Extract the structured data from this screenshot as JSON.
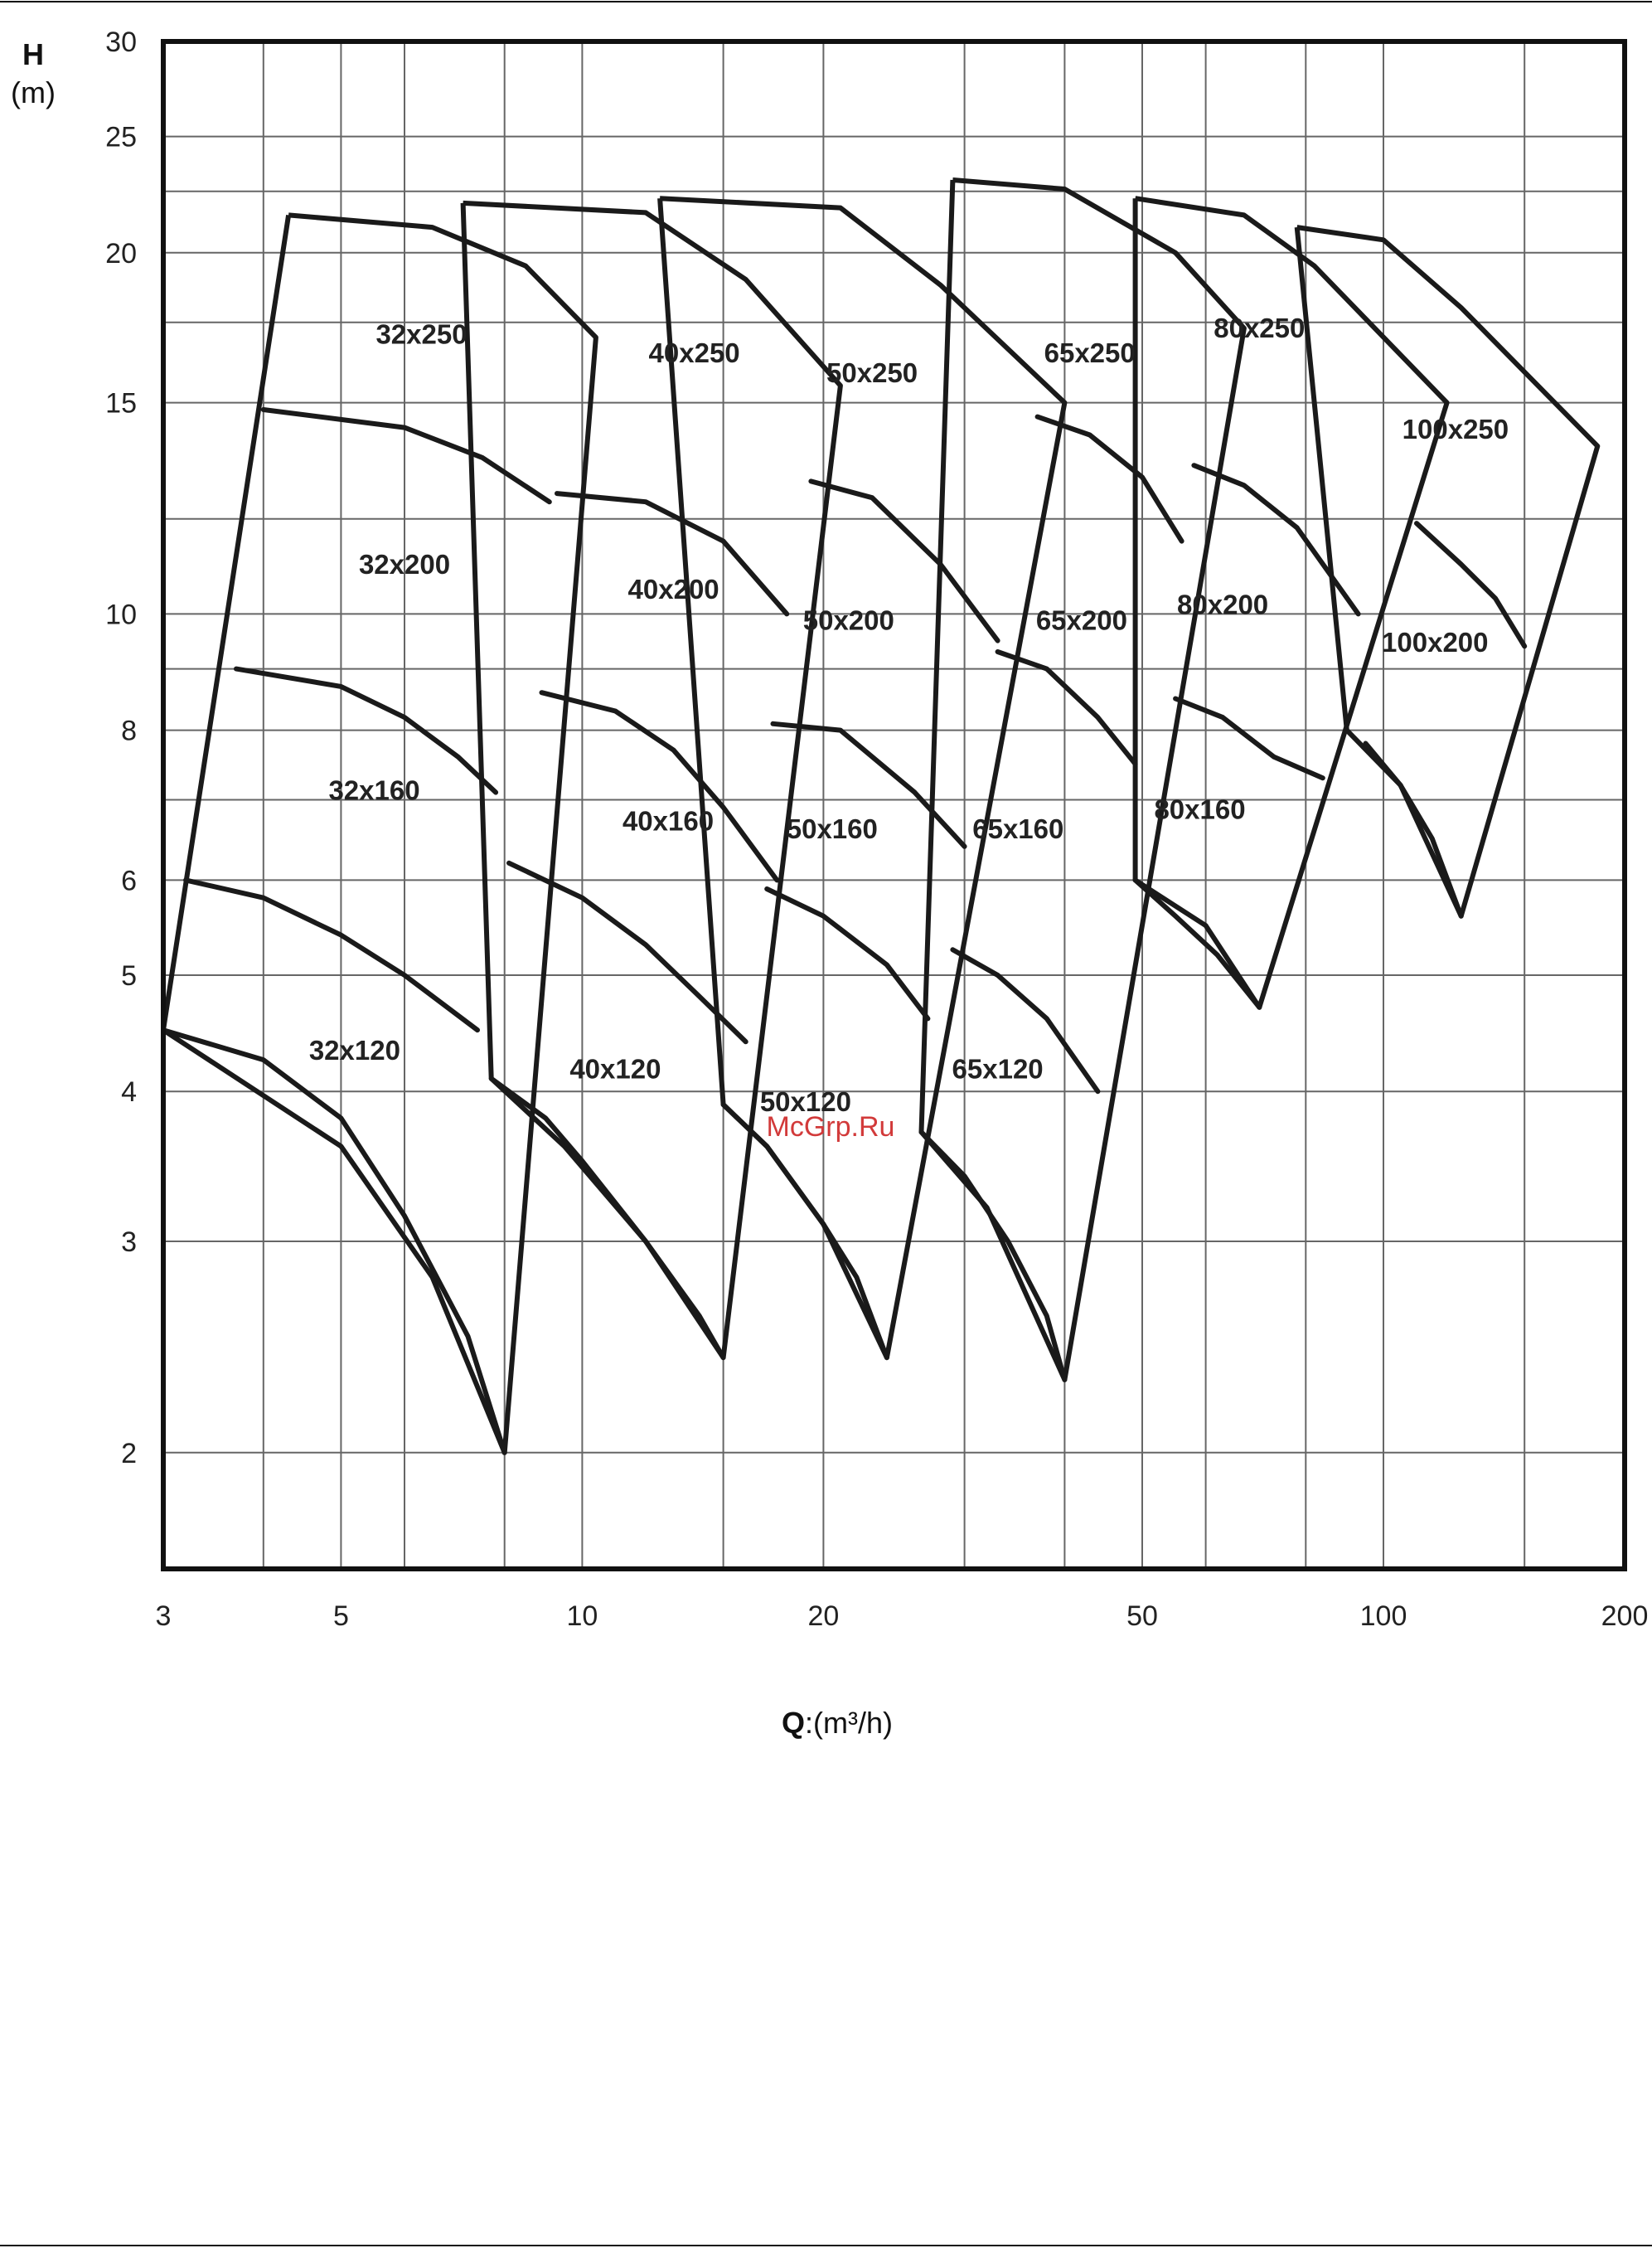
{
  "chart_data": {
    "type": "line",
    "title": "",
    "ylabel_symbol": "H",
    "ylabel_unit": "(m)",
    "xlabel_symbol": "Q",
    "xlabel_unit": ":(m³/h)",
    "x_scale": "log",
    "y_scale": "log",
    "xlim": [
      3,
      200
    ],
    "ylim": [
      1.6,
      30
    ],
    "x_ticks": [
      3,
      5,
      10,
      20,
      50,
      100,
      200
    ],
    "x_tick_labels": [
      "3",
      "5",
      "10",
      "20",
      "50",
      "100",
      "200"
    ],
    "y_ticks": [
      2,
      3,
      4,
      5,
      6,
      8,
      10,
      15,
      20,
      25,
      30
    ],
    "y_tick_labels": [
      "2",
      "3",
      "4",
      "5",
      "6",
      "8",
      "10",
      "15",
      "20",
      "25",
      "30"
    ],
    "x_gridlines": [
      3,
      4,
      5,
      6,
      8,
      10,
      15,
      20,
      30,
      40,
      50,
      60,
      80,
      100,
      150,
      200
    ],
    "y_gridlines": [
      2,
      3,
      4,
      5,
      6,
      7,
      8,
      9,
      10,
      12,
      15,
      17.5,
      20,
      22.5,
      25,
      30
    ],
    "grid": true,
    "line_color": "#1a1a1a",
    "watermark": "McGrp.Ru",
    "series": [
      {
        "name": "32x120",
        "label_at": [
          5.2,
          4.25
        ],
        "points": [
          [
            3,
            4.5
          ],
          [
            4,
            4.25
          ],
          [
            5,
            3.8
          ],
          [
            6,
            3.15
          ],
          [
            7.2,
            2.5
          ],
          [
            8,
            2.0
          ]
        ]
      },
      {
        "name": "32x160",
        "label_at": [
          5.5,
          7.0
        ],
        "points": [
          [
            3.2,
            6.0
          ],
          [
            4,
            5.8
          ],
          [
            5,
            5.4
          ],
          [
            6,
            5.0
          ],
          [
            7.4,
            4.5
          ]
        ]
      },
      {
        "name": "32x200",
        "label_at": [
          6.0,
          10.8
        ],
        "points": [
          [
            3.7,
            9.0
          ],
          [
            5,
            8.7
          ],
          [
            6,
            8.2
          ],
          [
            7,
            7.6
          ],
          [
            7.8,
            7.1
          ]
        ]
      },
      {
        "name": "32x250",
        "label_at": [
          6.3,
          16.8
        ],
        "points": [
          [
            4,
            14.8
          ],
          [
            6,
            14.3
          ],
          [
            7.5,
            13.5
          ],
          [
            9.1,
            12.4
          ]
        ]
      },
      {
        "name": "40x120",
        "label_at": [
          11.0,
          4.1
        ],
        "points": [
          [
            7.7,
            4.1
          ],
          [
            9,
            3.8
          ],
          [
            10,
            3.5
          ],
          [
            12,
            3.0
          ],
          [
            14,
            2.6
          ],
          [
            15,
            2.4
          ]
        ]
      },
      {
        "name": "40x160",
        "label_at": [
          12.8,
          6.6
        ],
        "points": [
          [
            8.1,
            6.2
          ],
          [
            10,
            5.8
          ],
          [
            12,
            5.3
          ],
          [
            14,
            4.8
          ],
          [
            16,
            4.4
          ]
        ]
      },
      {
        "name": "40x200",
        "label_at": [
          13.0,
          10.3
        ],
        "points": [
          [
            8.9,
            8.6
          ],
          [
            11,
            8.3
          ],
          [
            13,
            7.7
          ],
          [
            15,
            6.9
          ],
          [
            17.5,
            6.0
          ]
        ]
      },
      {
        "name": "40x250",
        "label_at": [
          13.8,
          16.2
        ],
        "points": [
          [
            9.3,
            12.6
          ],
          [
            12,
            12.4
          ],
          [
            15,
            11.5
          ],
          [
            18,
            10.0
          ]
        ]
      },
      {
        "name": "50x120",
        "label_at": [
          19.0,
          3.85
        ],
        "points": [
          [
            15,
            3.9
          ],
          [
            17,
            3.6
          ],
          [
            20,
            3.1
          ],
          [
            22,
            2.8
          ],
          [
            24,
            2.4
          ]
        ]
      },
      {
        "name": "50x160",
        "label_at": [
          20.5,
          6.5
        ],
        "points": [
          [
            17,
            5.9
          ],
          [
            20,
            5.6
          ],
          [
            24,
            5.1
          ],
          [
            27,
            4.6
          ]
        ]
      },
      {
        "name": "50x200",
        "label_at": [
          21.5,
          9.7
        ],
        "points": [
          [
            17.3,
            8.1
          ],
          [
            21,
            8.0
          ],
          [
            26,
            7.1
          ],
          [
            30,
            6.4
          ]
        ]
      },
      {
        "name": "50x250",
        "label_at": [
          23.0,
          15.6
        ],
        "points": [
          [
            19.3,
            12.9
          ],
          [
            23,
            12.5
          ],
          [
            28,
            11.0
          ],
          [
            33,
            9.5
          ]
        ]
      },
      {
        "name": "65x120",
        "label_at": [
          33.0,
          4.1
        ],
        "points": [
          [
            26.5,
            3.7
          ],
          [
            30,
            3.4
          ],
          [
            34,
            3.0
          ],
          [
            38,
            2.6
          ],
          [
            40,
            2.3
          ]
        ]
      },
      {
        "name": "65x160",
        "label_at": [
          35.0,
          6.5
        ],
        "points": [
          [
            29,
            5.25
          ],
          [
            33,
            5.0
          ],
          [
            38,
            4.6
          ],
          [
            44,
            4.0
          ]
        ]
      },
      {
        "name": "65x200",
        "label_at": [
          42.0,
          9.7
        ],
        "points": [
          [
            33,
            9.3
          ],
          [
            38,
            9.0
          ],
          [
            44,
            8.2
          ],
          [
            49,
            7.5
          ]
        ]
      },
      {
        "name": "65x250",
        "label_at": [
          43.0,
          16.2
        ],
        "points": [
          [
            37,
            14.6
          ],
          [
            43,
            14.1
          ],
          [
            50,
            13.0
          ],
          [
            56,
            11.5
          ]
        ]
      },
      {
        "name": "80x160",
        "label_at": [
          59.0,
          6.75
        ],
        "points": [
          [
            49,
            6.0
          ],
          [
            55,
            5.6
          ],
          [
            62,
            5.2
          ],
          [
            70,
            4.7
          ]
        ]
      },
      {
        "name": "80x200",
        "label_at": [
          63.0,
          10.0
        ],
        "points": [
          [
            55,
            8.5
          ],
          [
            63,
            8.2
          ],
          [
            73,
            7.6
          ],
          [
            84,
            7.3
          ]
        ]
      },
      {
        "name": "80x250",
        "label_at": [
          70.0,
          17.0
        ],
        "points": [
          [
            58,
            13.3
          ],
          [
            67,
            12.8
          ],
          [
            78,
            11.8
          ],
          [
            93,
            10.0
          ]
        ]
      },
      {
        "name": "100x200",
        "label_at": [
          116.0,
          9.3
        ],
        "points": [
          [
            95,
            7.8
          ],
          [
            105,
            7.2
          ],
          [
            115,
            6.5
          ],
          [
            125,
            5.6
          ]
        ]
      },
      {
        "name": "100x250",
        "label_at": [
          123.0,
          14.0
        ],
        "points": [
          [
            110,
            11.9
          ],
          [
            125,
            11.0
          ],
          [
            138,
            10.3
          ],
          [
            150,
            9.4
          ]
        ]
      }
    ],
    "envelopes": [
      {
        "name": "32",
        "points": [
          [
            4.3,
            21.5
          ],
          [
            6.5,
            21.0
          ],
          [
            8.5,
            19.5
          ],
          [
            10.4,
            17.0
          ],
          [
            8.0,
            2.0
          ],
          [
            6.5,
            2.8
          ],
          [
            5,
            3.6
          ],
          [
            3,
            4.5
          ],
          [
            4.3,
            21.5
          ]
        ]
      },
      {
        "name": "40",
        "points": [
          [
            7.1,
            22.0
          ],
          [
            12,
            21.6
          ],
          [
            16,
            19.0
          ],
          [
            21,
            15.5
          ],
          [
            15,
            2.4
          ],
          [
            12,
            3.0
          ],
          [
            9.5,
            3.6
          ],
          [
            7.7,
            4.1
          ],
          [
            7.1,
            22.0
          ]
        ]
      },
      {
        "name": "50",
        "points": [
          [
            12.5,
            22.2
          ],
          [
            21,
            21.8
          ],
          [
            28,
            18.8
          ],
          [
            40,
            15.0
          ],
          [
            24,
            2.4
          ],
          [
            20,
            3.1
          ],
          [
            17,
            3.6
          ],
          [
            15,
            3.9
          ],
          [
            12.5,
            22.2
          ]
        ]
      },
      {
        "name": "65",
        "points": [
          [
            29,
            23.0
          ],
          [
            40,
            22.6
          ],
          [
            55,
            20.0
          ],
          [
            67,
            17.3
          ],
          [
            40,
            2.3
          ],
          [
            32,
            3.2
          ],
          [
            26.5,
            3.7
          ],
          [
            29,
            23.0
          ]
        ]
      },
      {
        "name": "80",
        "points": [
          [
            49,
            22.2
          ],
          [
            67,
            21.5
          ],
          [
            82,
            19.5
          ],
          [
            120,
            15.0
          ],
          [
            70,
            4.7
          ],
          [
            60,
            5.5
          ],
          [
            49,
            6.0
          ],
          [
            49,
            22.2
          ]
        ]
      },
      {
        "name": "100",
        "points": [
          [
            78,
            21.0
          ],
          [
            100,
            20.5
          ],
          [
            125,
            18.0
          ],
          [
            185,
            13.8
          ],
          [
            125,
            5.6
          ],
          [
            105,
            7.2
          ],
          [
            90,
            8.0
          ],
          [
            78,
            21.0
          ]
        ]
      }
    ]
  }
}
